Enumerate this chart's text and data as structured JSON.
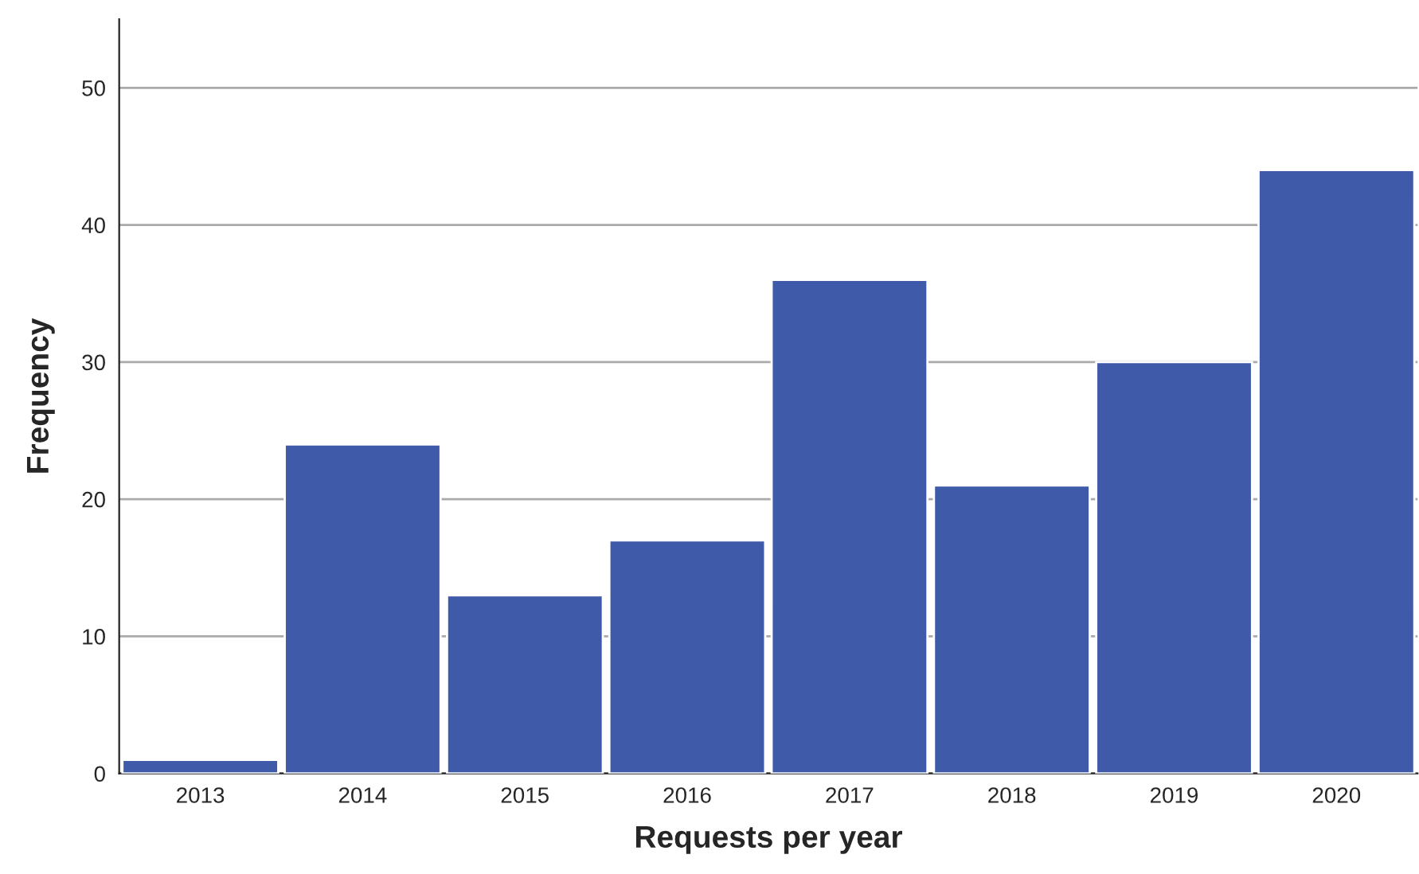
{
  "chart_data": {
    "type": "bar",
    "xlabel": "Requests per year",
    "ylabel": "Frequency",
    "categories": [
      "2013",
      "2014",
      "2015",
      "2016",
      "2017",
      "2018",
      "2019",
      "2020"
    ],
    "values": [
      1,
      24,
      13,
      17,
      36,
      21,
      30,
      44
    ],
    "color": "#3f5aa8",
    "ylim": [
      0,
      55
    ],
    "yticks": [
      0,
      10,
      20,
      30,
      40,
      50
    ],
    "grid": "y"
  }
}
